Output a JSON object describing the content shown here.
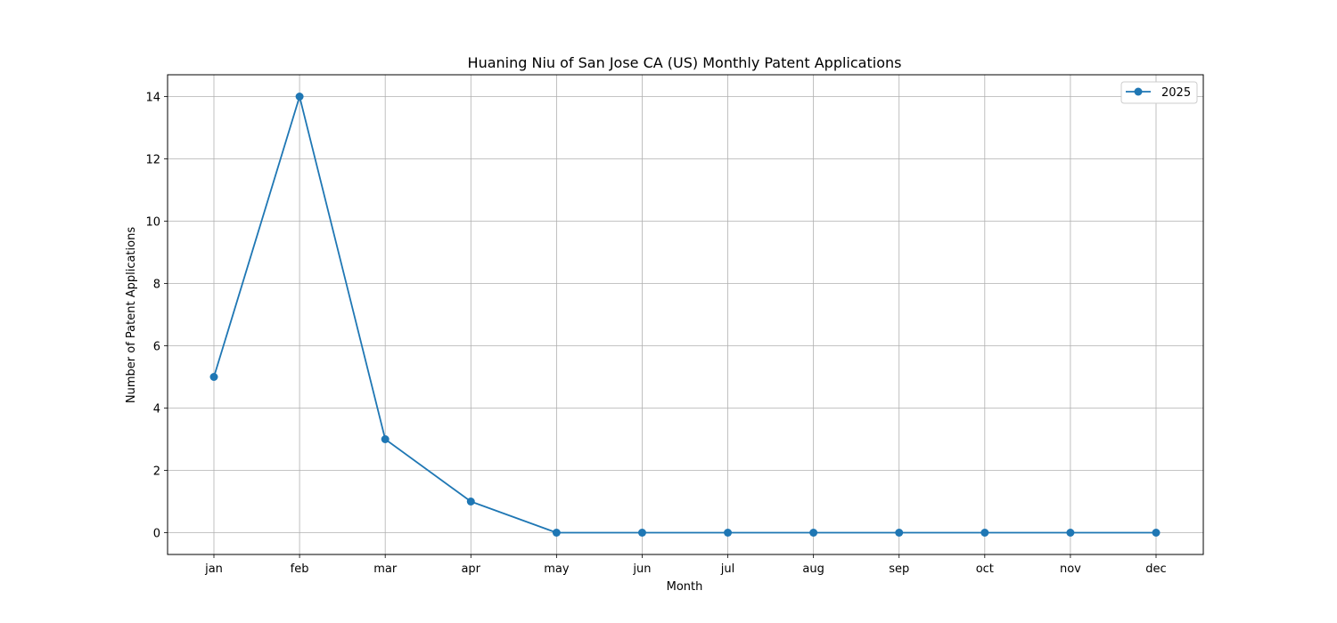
{
  "chart_data": {
    "type": "line",
    "title": "Huaning Niu of San Jose CA (US) Monthly Patent Applications",
    "xlabel": "Month",
    "ylabel": "Number of Patent Applications",
    "categories": [
      "jan",
      "feb",
      "mar",
      "apr",
      "may",
      "jun",
      "jul",
      "aug",
      "sep",
      "oct",
      "nov",
      "dec"
    ],
    "series": [
      {
        "name": "2025",
        "values": [
          5,
          14,
          3,
          1,
          0,
          0,
          0,
          0,
          0,
          0,
          0,
          0
        ],
        "color": "#1f77b4",
        "marker": "circle"
      }
    ],
    "ylim": [
      -0.7,
      14.7
    ],
    "yticks": [
      0,
      2,
      4,
      6,
      8,
      10,
      12,
      14
    ],
    "ytick_labels": [
      "0",
      "2",
      "4",
      "6",
      "8",
      "10",
      "12",
      "14"
    ],
    "grid": true,
    "legend_position": "top-right"
  }
}
